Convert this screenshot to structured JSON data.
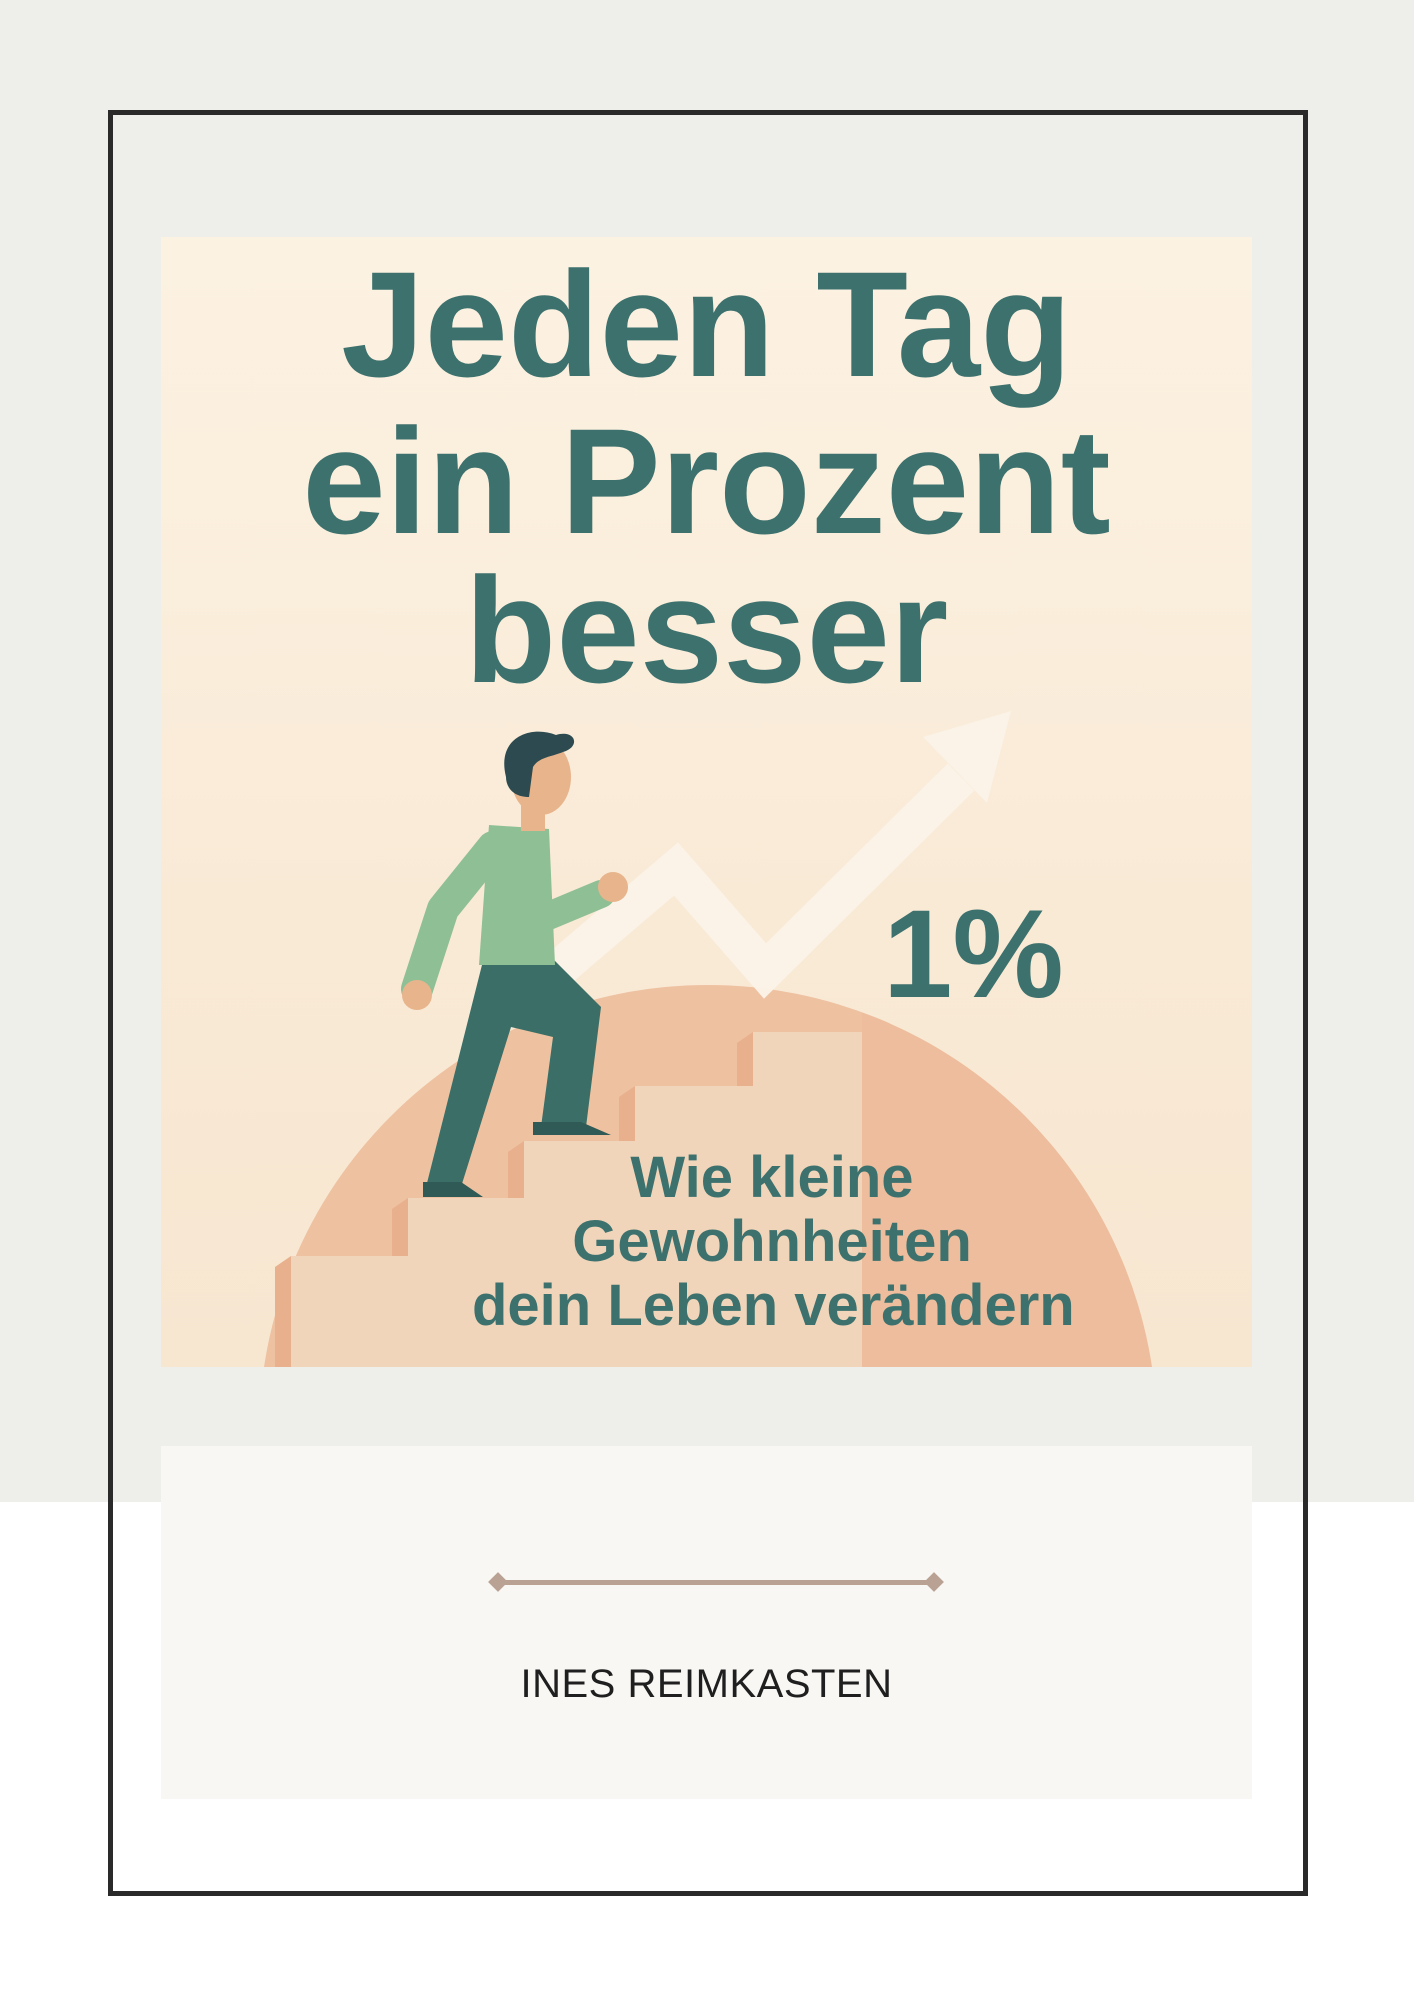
{
  "cover": {
    "title_lines": [
      "Jeden Tag",
      "ein Prozent",
      "besser"
    ],
    "badge": "1%",
    "subtitle_lines": [
      "Wie kleine",
      "Gewohnheiten",
      "dein Leben verändern"
    ],
    "author": "INES REIMKASTEN"
  },
  "colors": {
    "accent_teal": "#3d716d",
    "page_gray": "#eeeeea",
    "panel": "#f8f7f3",
    "divider": "#b9a194",
    "sun": "#eec1a1"
  }
}
